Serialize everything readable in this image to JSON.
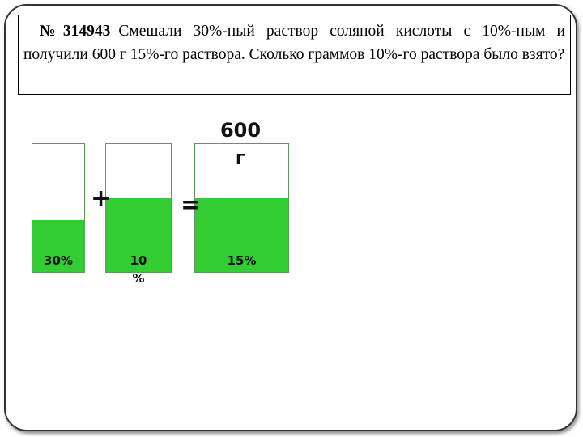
{
  "problem": {
    "number": "№314943",
    "text": "Смешали 30%-ный раствор соляной кислоты с 10%-ным и получили 600 г 15%-го раствора.  Сколько граммов 10%-го раствора было взято?"
  },
  "beakers": [
    {
      "label": "30%"
    },
    {
      "label": "10 %"
    },
    {
      "label": "15%",
      "mass": "600 г"
    }
  ],
  "operators": {
    "plus": "+",
    "equals": "="
  }
}
